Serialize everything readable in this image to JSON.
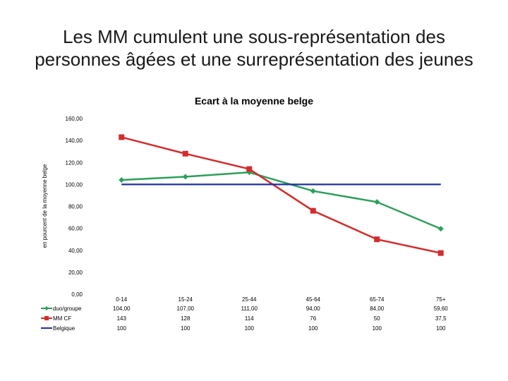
{
  "title_lines": [
    "Les MM cumulent une sous-représentation des",
    "personnes âgées et une surreprésentation des jeunes"
  ],
  "chart_data": {
    "type": "line",
    "title": "Ecart à la moyenne belge",
    "ylabel": "en pourcent de la moyenne belge",
    "xlabel": "",
    "ylim": [
      0,
      160
    ],
    "yticks": [
      "0,00",
      "20,00",
      "40,00",
      "60,00",
      "80,00",
      "100,00",
      "120,00",
      "140,00",
      "160,00"
    ],
    "categories": [
      "0-14",
      "15-24",
      "25-44",
      "45-64",
      "65-74",
      "75+"
    ],
    "series": [
      {
        "name": "duo/groupe",
        "color": "#2ca05a",
        "marker": "diamond",
        "values": [
          104,
          107,
          111,
          94,
          84,
          59.6
        ],
        "labels": [
          "104,00",
          "107,00",
          "111,00",
          "94,00",
          "84,00",
          "59,60"
        ]
      },
      {
        "name": "MM CF",
        "color": "#d62b2b",
        "marker": "square",
        "values": [
          143,
          128,
          114,
          76,
          50,
          37.5
        ],
        "labels": [
          "143",
          "128",
          "114",
          "76",
          "50",
          "37,5"
        ]
      },
      {
        "name": "Belgique",
        "color": "#1f2fa6",
        "marker": "none",
        "values": [
          100,
          100,
          100,
          100,
          100,
          100
        ],
        "labels": [
          "100",
          "100",
          "100",
          "100",
          "100",
          "100"
        ]
      }
    ],
    "legend": "data-table",
    "grid": false
  }
}
